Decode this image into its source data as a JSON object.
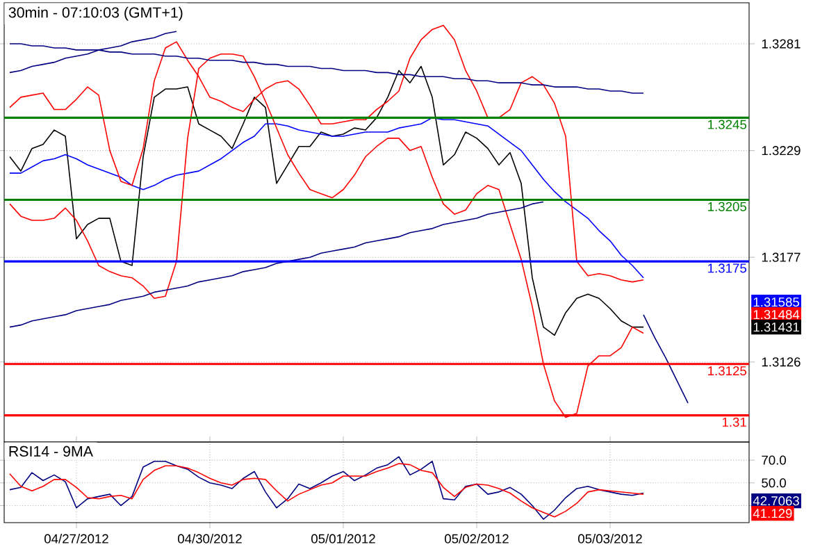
{
  "chart_data": [
    {
      "type": "line",
      "title": "30min - 07:10:03 (GMT+1)",
      "categories": [
        null,
        null,
        null,
        null,
        null,
        null,
        null,
        null,
        null,
        null,
        null,
        null,
        null,
        null,
        null,
        null,
        null,
        null,
        null,
        null,
        null,
        null,
        null,
        null,
        null,
        null,
        null,
        null,
        null,
        null,
        null,
        null,
        null,
        null,
        null,
        null,
        null,
        null,
        null,
        null,
        null,
        null,
        null,
        null,
        null,
        null,
        null,
        null,
        null,
        null,
        null,
        null,
        null,
        null,
        null,
        null,
        null,
        null,
        null,
        null,
        null,
        null,
        null,
        null,
        null,
        null,
        null
      ],
      "ylim": [
        1.3087,
        1.3301
      ],
      "yticks": [
        1.3281,
        1.3229,
        1.3177,
        1.3126
      ],
      "tick_labels": "y",
      "grid": "y",
      "series": [
        {
          "color": "#000000",
          "values": [
            1.3226,
            1.3219,
            1.323,
            1.3232,
            1.3239,
            1.3236,
            1.3186,
            1.3193,
            1.3196,
            1.3196,
            1.3175,
            1.3173,
            1.3226,
            1.3255,
            1.3259,
            1.3259,
            1.326,
            1.3242,
            1.3239,
            1.3236,
            1.323,
            1.3242,
            1.3255,
            1.325,
            1.3213,
            1.3222,
            1.3231,
            1.3231,
            1.3238,
            1.3236,
            1.3237,
            1.324,
            1.3239,
            1.3245,
            1.3255,
            1.3268,
            1.3262,
            1.327,
            1.3255,
            1.3222,
            1.3227,
            1.3238,
            1.3235,
            1.323,
            1.3222,
            1.3228,
            1.3213,
            1.3167,
            1.3143,
            1.3139,
            1.315,
            1.3157,
            1.3159,
            1.3157,
            1.3152,
            1.3146,
            1.3143,
            1.3143,
            null,
            null,
            null,
            null,
            null,
            null,
            null,
            null,
            null
          ]
        },
        {
          "color": "#0000ff",
          "values": [
            1.3218,
            1.3218,
            1.3221,
            1.3224,
            1.3225,
            1.3227,
            1.3225,
            1.3222,
            1.322,
            1.3218,
            1.3216,
            1.3212,
            1.321,
            1.3212,
            1.3215,
            1.3217,
            1.3218,
            1.3219,
            1.3222,
            1.3225,
            1.3229,
            1.3233,
            1.3236,
            1.3242,
            1.3242,
            1.3241,
            1.3239,
            1.3238,
            1.3237,
            1.3236,
            1.3236,
            1.3237,
            1.3238,
            1.3238,
            1.3238,
            1.324,
            1.3241,
            1.3242,
            1.3245,
            1.3244,
            1.3244,
            1.3243,
            1.3242,
            1.3241,
            1.3237,
            1.3233,
            1.3229,
            1.3222,
            1.3215,
            1.3209,
            1.3204,
            1.32,
            1.3196,
            1.319,
            1.3185,
            1.3178,
            1.3173,
            1.3167,
            null,
            null,
            null,
            null,
            null,
            null,
            null,
            null,
            null
          ]
        },
        {
          "color": "#ff0000",
          "values": [
            1.325,
            1.3255,
            1.3256,
            1.3257,
            1.3249,
            1.3249,
            1.3254,
            1.326,
            1.3256,
            1.3229,
            1.3214,
            1.3212,
            1.323,
            1.3263,
            1.3279,
            1.3282,
            1.3273,
            1.3265,
            1.3255,
            1.3253,
            1.325,
            1.3248,
            1.3254,
            1.3259,
            1.3262,
            1.3263,
            1.3259,
            1.3251,
            1.3242,
            1.3242,
            1.3243,
            1.3244,
            1.3244,
            1.3249,
            1.3253,
            1.3258,
            1.3274,
            1.3283,
            1.3288,
            1.329,
            1.3283,
            1.3268,
            1.3258,
            1.3245,
            1.3245,
            1.3249,
            1.3262,
            1.3265,
            1.3261,
            1.3252,
            1.3236,
            1.3175,
            1.3168,
            1.3169,
            1.3168,
            1.3166,
            1.3165,
            1.3166,
            null,
            null,
            null,
            null,
            null,
            null,
            null,
            null,
            null
          ]
        },
        {
          "color": "#ff0000",
          "values": [
            1.3203,
            1.3197,
            1.3195,
            1.3195,
            1.3196,
            1.3201,
            1.3195,
            1.3185,
            1.3173,
            1.317,
            1.3168,
            1.3167,
            1.3163,
            1.3157,
            1.3158,
            1.3175,
            1.3235,
            1.3269,
            1.3274,
            1.3276,
            1.3276,
            1.3275,
            1.3265,
            1.3253,
            1.324,
            1.3227,
            1.3218,
            1.321,
            1.3208,
            1.3206,
            1.321,
            1.3217,
            1.3226,
            1.3231,
            1.3235,
            1.3235,
            1.3229,
            1.3231,
            1.3216,
            1.3203,
            1.3198,
            1.32,
            1.3208,
            1.3212,
            1.321,
            1.3193,
            1.3176,
            1.3153,
            1.3125,
            1.3107,
            1.3099,
            1.3101,
            1.3124,
            1.3129,
            1.3129,
            1.3133,
            1.3143,
            1.314,
            null,
            null,
            null,
            null,
            null,
            null,
            null,
            null,
            null
          ]
        },
        {
          "color": "#000080",
          "values": [
            1.3281,
            1.3281,
            1.328,
            1.328,
            1.3279,
            1.3279,
            1.3278,
            1.3278,
            1.3278,
            1.3277,
            1.3277,
            1.3276,
            1.3276,
            1.3276,
            1.3275,
            1.3275,
            1.3274,
            1.3274,
            1.3273,
            1.3273,
            1.3273,
            1.3272,
            1.3272,
            1.3271,
            1.3271,
            1.327,
            1.327,
            1.327,
            1.3269,
            1.3269,
            1.3268,
            1.3268,
            1.3268,
            1.3267,
            1.3267,
            1.3266,
            1.3266,
            1.3265,
            1.3265,
            1.3265,
            1.3264,
            1.3264,
            1.3263,
            1.3263,
            1.3262,
            1.3262,
            1.3262,
            1.3261,
            1.3261,
            1.326,
            1.326,
            1.326,
            1.3259,
            1.3259,
            1.3258,
            1.3258,
            1.3257,
            1.3257,
            null,
            null,
            null,
            null,
            null,
            null,
            null,
            null,
            null
          ]
        },
        {
          "color": "#000080",
          "values": [
            1.3267,
            1.3268,
            1.327,
            1.3271,
            1.3272,
            1.3274,
            1.3275,
            1.3276,
            1.3278,
            1.3279,
            1.328,
            1.3282,
            1.3283,
            1.3284,
            1.3286,
            1.3287,
            null,
            null,
            null,
            null,
            null,
            null,
            null,
            null,
            null,
            null,
            null,
            null,
            null,
            null,
            null,
            null,
            null,
            null,
            null,
            null,
            null,
            null,
            null,
            null,
            null,
            null,
            null,
            null,
            null,
            null,
            null,
            null,
            null,
            null,
            null,
            null,
            null,
            null,
            null,
            null,
            null,
            null,
            null,
            null,
            null,
            null,
            null,
            null,
            null,
            null,
            null
          ]
        },
        {
          "color": "#000080",
          "values": [
            1.3143,
            1.3144,
            1.3146,
            1.3147,
            1.3148,
            1.3149,
            1.3151,
            1.3152,
            1.3153,
            1.3154,
            1.3156,
            1.3157,
            1.3158,
            1.316,
            1.3161,
            1.3162,
            1.3163,
            1.3165,
            1.3166,
            1.3167,
            1.3168,
            1.317,
            1.3171,
            1.3172,
            1.3174,
            1.3175,
            1.3176,
            1.3177,
            1.3179,
            1.318,
            1.3181,
            1.3182,
            1.3184,
            1.3185,
            1.3186,
            1.3187,
            1.3189,
            1.319,
            1.3191,
            1.3193,
            1.3194,
            1.3195,
            1.3196,
            1.3198,
            1.3199,
            1.32,
            1.3201,
            1.3203,
            1.3204,
            null,
            null,
            null,
            null,
            null,
            null,
            null,
            null,
            null,
            null,
            null,
            null,
            null,
            null,
            null,
            null,
            null,
            null
          ]
        },
        {
          "color": "#000080",
          "values": [
            null,
            null,
            null,
            null,
            null,
            null,
            null,
            null,
            null,
            null,
            null,
            null,
            null,
            null,
            null,
            null,
            null,
            null,
            null,
            null,
            null,
            null,
            null,
            null,
            null,
            null,
            null,
            null,
            null,
            null,
            null,
            null,
            null,
            null,
            null,
            null,
            null,
            null,
            null,
            null,
            null,
            null,
            null,
            null,
            null,
            null,
            null,
            null,
            null,
            null,
            null,
            null,
            null,
            null,
            null,
            null,
            null,
            1.3149,
            1.3138,
            1.3128,
            1.3117,
            1.3106,
            null,
            null,
            null,
            null,
            null
          ]
        }
      ],
      "ref_lines": [
        {
          "axis": "y",
          "value": 1.3245,
          "label": "1.3245",
          "color": "#008000"
        },
        {
          "axis": "y",
          "value": 1.3205,
          "label": "1.3205",
          "color": "#008000"
        },
        {
          "axis": "y",
          "value": 1.3175,
          "label": "1.3175",
          "color": "#0000ff"
        },
        {
          "axis": "y",
          "value": 1.3125,
          "label": "1.3125",
          "color": "#ff0000"
        },
        {
          "axis": "y",
          "value": 1.31,
          "label": "1.31",
          "color": "#ff0000"
        }
      ],
      "annotations": [
        "1.31585",
        "1.31484",
        "1.31431"
      ]
    },
    {
      "type": "line",
      "title": "RSI14 - 9MA",
      "categories": [
        null,
        null,
        null,
        null,
        null,
        null,
        "04/27/2012",
        null,
        null,
        null,
        null,
        null,
        null,
        null,
        null,
        null,
        null,
        null,
        "04/30/2012",
        null,
        null,
        null,
        null,
        null,
        null,
        null,
        null,
        null,
        null,
        null,
        "05/01/2012",
        null,
        null,
        null,
        null,
        null,
        null,
        null,
        null,
        null,
        null,
        null,
        "05/02/2012",
        null,
        null,
        null,
        null,
        null,
        null,
        null,
        null,
        null,
        null,
        null,
        "05/03/2012",
        null,
        null,
        null,
        null,
        null,
        null,
        null,
        null,
        null,
        null,
        null,
        null
      ],
      "ylim": [
        15,
        86
      ],
      "yticks": [
        {
          "value": 70,
          "label": "70.0"
        },
        {
          "value": 50,
          "label": "50.0"
        },
        {
          "value": 30,
          "label": null
        }
      ],
      "grid": true,
      "series": [
        {
          "color": "#000080",
          "values": [
            44,
            46,
            59,
            52,
            57,
            51,
            28,
            36,
            38,
            40,
            30,
            38,
            64,
            69,
            69,
            65,
            62,
            55,
            50,
            48,
            45,
            54,
            60,
            42,
            28,
            36,
            49,
            45,
            50,
            56,
            60,
            52,
            57,
            63,
            66,
            73,
            57,
            62,
            69,
            36,
            35,
            47,
            49,
            40,
            42,
            46,
            40,
            30,
            18,
            26,
            37,
            45,
            47,
            44,
            42,
            40,
            39,
            41,
            null,
            null,
            null,
            null,
            null,
            null,
            null,
            null,
            null
          ]
        },
        {
          "color": "#ff0000",
          "values": [
            58,
            47,
            43,
            47,
            53,
            53,
            46,
            37,
            36,
            38,
            39,
            36,
            53,
            61,
            65,
            65,
            63,
            59,
            54,
            50,
            48,
            53,
            54,
            53,
            43,
            34,
            40,
            44,
            48,
            50,
            56,
            56,
            56,
            60,
            63,
            67,
            66,
            61,
            59,
            46,
            38,
            46,
            49,
            48,
            45,
            41,
            34,
            28,
            24,
            20,
            25,
            32,
            42,
            44,
            43,
            42,
            41,
            40,
            null,
            null,
            null,
            null,
            null,
            null,
            null,
            null,
            null
          ]
        }
      ],
      "annotations": [
        "42.7063",
        "41.129"
      ]
    }
  ]
}
